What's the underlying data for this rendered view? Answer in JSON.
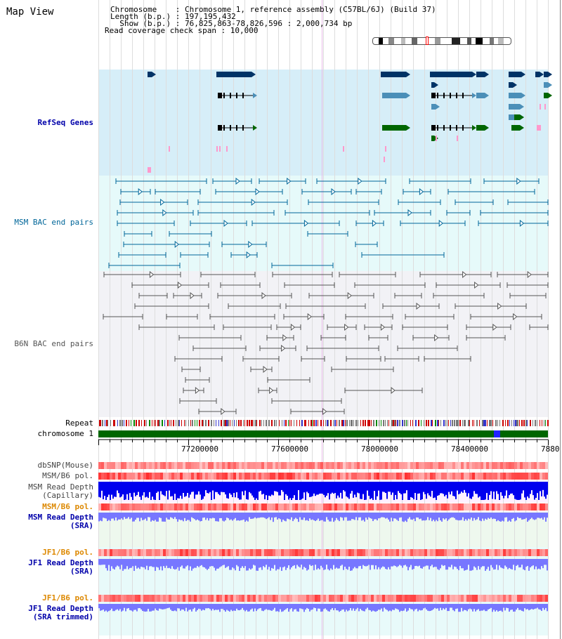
{
  "title": "Map View",
  "info": {
    "chromosome_line": "Chromosome    : Chromosome 1, reference assembly (C57BL/6J) (Build 37)",
    "length_line": "Length (b.p.) : 197,195,432",
    "show_line": "  Show (b.p.) : 76,825,863-78,826,596 : 2,000,734 bp",
    "coverage_line": "Read coverage check span : 10,000"
  },
  "tracks": {
    "refseq": "RefSeq Genes",
    "msm_bac": "MSM BAC end pairs",
    "b6n_bac": "B6N BAC end pairs",
    "repeat": "Repeat",
    "chromosome": "chromosome 1",
    "dbsnp": "dbSNP(Mouse)",
    "msm_b6_pol": "MSM/B6 pol.",
    "msm_read_depth_cap_1": "MSM Read Depth",
    "msm_read_depth_cap_2": "(Capillary)",
    "msm_b6_pol_2": "MSM/B6 pol.",
    "msm_read_depth_sra_1": "MSM Read Depth",
    "msm_read_depth_sra_2": "(SRA)",
    "jf1_b6_pol": "JF1/B6 pol.",
    "jf1_read_depth_sra_1": "JF1 Read Depth",
    "jf1_read_depth_sra_2": "(SRA)",
    "jf1_b6_pol_2": "JF1/B6 pol.",
    "jf1_read_depth_trim_1": "JF1 Read Depth",
    "jf1_read_depth_trim_2": "(SRA trimmed)"
  },
  "axis": {
    "ticks": [
      "77200000",
      "77600000",
      "78000000",
      "78400000",
      "7880"
    ]
  },
  "colors": {
    "refseq_bg": "#d6eef8",
    "msm_bg": "#e6fafa",
    "b6n_bg": "#f2f2f6",
    "chromosome_bar": "#006600",
    "gene_dark": "#003366",
    "gene_mid": "#4b8fb8",
    "gene_green": "#006600",
    "pink": "#ff99cc",
    "msm_line": "#006699",
    "b6n_line": "#555555",
    "depth_blue": "#0000ee",
    "depth_light": "#7777ff"
  }
}
